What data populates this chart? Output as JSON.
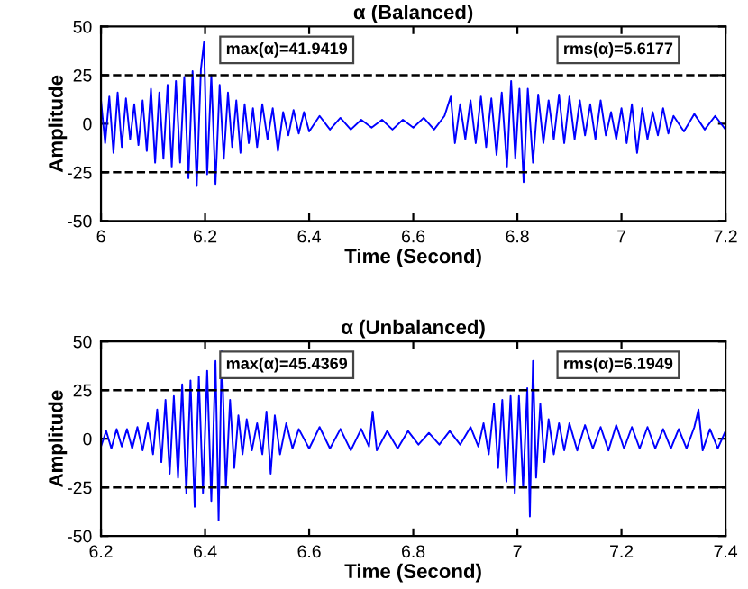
{
  "chart_data": [
    {
      "type": "line",
      "title": "α (Balanced)",
      "xlabel": "Time (Second)",
      "ylabel": "Amplitude",
      "xlim": [
        6,
        7.2
      ],
      "xticks": [
        6,
        6.2,
        6.4,
        6.6,
        6.8,
        7,
        7.2
      ],
      "ylim": [
        -50,
        50
      ],
      "yticks": [
        -50,
        -25,
        0,
        25,
        50
      ],
      "ref_lines": [
        {
          "axis": "y",
          "value": 25,
          "color": "#000000",
          "line_style": "dashed"
        },
        {
          "axis": "y",
          "value": -25,
          "color": "#000000",
          "line_style": "dashed"
        }
      ],
      "annotations": [
        "max(α)=41.9419",
        "rms(α)=5.6177"
      ],
      "grid": false,
      "legend": false,
      "series": [
        {
          "color": "#0000ff",
          "x": [
            6.0,
            6.008,
            6.016,
            6.024,
            6.032,
            6.04,
            6.048,
            6.056,
            6.064,
            6.072,
            6.08,
            6.088,
            6.096,
            6.104,
            6.112,
            6.12,
            6.128,
            6.136,
            6.144,
            6.152,
            6.16,
            6.168,
            6.176,
            6.184,
            6.192,
            6.198,
            6.204,
            6.212,
            6.22,
            6.228,
            6.236,
            6.244,
            6.252,
            6.26,
            6.268,
            6.276,
            6.284,
            6.292,
            6.3,
            6.31,
            6.32,
            6.33,
            6.34,
            6.35,
            6.36,
            6.37,
            6.38,
            6.39,
            6.4,
            6.42,
            6.44,
            6.46,
            6.48,
            6.5,
            6.52,
            6.54,
            6.56,
            6.58,
            6.6,
            6.62,
            6.64,
            6.66,
            6.672,
            6.68,
            6.69,
            6.7,
            6.71,
            6.72,
            6.73,
            6.74,
            6.75,
            6.76,
            6.77,
            6.78,
            6.788,
            6.796,
            6.804,
            6.812,
            6.82,
            6.83,
            6.84,
            6.85,
            6.86,
            6.87,
            6.88,
            6.89,
            6.9,
            6.91,
            6.92,
            6.93,
            6.94,
            6.95,
            6.96,
            6.97,
            6.98,
            6.99,
            7.0,
            7.01,
            7.02,
            7.03,
            7.04,
            7.05,
            7.06,
            7.07,
            7.08,
            7.09,
            7.1,
            7.12,
            7.14,
            7.16,
            7.18,
            7.2
          ],
          "values": [
            12,
            -10,
            14,
            -15,
            16,
            -12,
            13,
            -8,
            10,
            -11,
            12,
            -14,
            18,
            -20,
            16,
            -18,
            20,
            -22,
            22,
            -20,
            24,
            -28,
            27,
            -32,
            28,
            42,
            -26,
            25,
            -31,
            20,
            -18,
            16,
            -12,
            12,
            -15,
            10,
            -10,
            8,
            -12,
            10,
            -8,
            8,
            -14,
            6,
            -6,
            7,
            -5,
            6,
            -4,
            4,
            -3,
            3,
            -3,
            2,
            -2,
            2,
            -3,
            2,
            -2,
            3,
            -3,
            4,
            14,
            -10,
            10,
            -8,
            12,
            -10,
            14,
            -12,
            13,
            -16,
            16,
            -22,
            22,
            -18,
            18,
            -30,
            18,
            -20,
            15,
            -10,
            12,
            -8,
            15,
            -10,
            14,
            -8,
            12,
            -6,
            10,
            -8,
            12,
            -6,
            6,
            -8,
            8,
            -10,
            10,
            -15,
            8,
            -8,
            6,
            -6,
            8,
            -5,
            4,
            -4,
            5,
            -3,
            4,
            -3
          ]
        }
      ]
    },
    {
      "type": "line",
      "title": "α (Unbalanced)",
      "xlabel": "Time (Second)",
      "ylabel": "Amplitude",
      "xlim": [
        6.2,
        7.4
      ],
      "xticks": [
        6.2,
        6.4,
        6.6,
        6.8,
        7,
        7.2,
        7.4
      ],
      "ylim": [
        -50,
        50
      ],
      "yticks": [
        -50,
        -25,
        0,
        25,
        50
      ],
      "ref_lines": [
        {
          "axis": "y",
          "value": 25,
          "color": "#000000",
          "line_style": "dashed"
        },
        {
          "axis": "y",
          "value": -25,
          "color": "#000000",
          "line_style": "dashed"
        }
      ],
      "annotations": [
        "max(α)=45.4369",
        "rms(α)=6.1949"
      ],
      "grid": false,
      "legend": false,
      "series": [
        {
          "color": "#0000ff",
          "x": [
            6.2,
            6.21,
            6.22,
            6.23,
            6.24,
            6.25,
            6.26,
            6.27,
            6.28,
            6.29,
            6.3,
            6.308,
            6.316,
            6.324,
            6.332,
            6.34,
            6.348,
            6.356,
            6.364,
            6.372,
            6.38,
            6.388,
            6.396,
            6.404,
            6.412,
            6.42,
            6.426,
            6.432,
            6.44,
            6.448,
            6.456,
            6.464,
            6.472,
            6.48,
            6.49,
            6.5,
            6.51,
            6.518,
            6.526,
            6.534,
            6.544,
            6.556,
            6.568,
            6.58,
            6.6,
            6.62,
            6.64,
            6.66,
            6.68,
            6.7,
            6.715,
            6.722,
            6.73,
            6.75,
            6.77,
            6.79,
            6.81,
            6.83,
            6.85,
            6.87,
            6.89,
            6.91,
            6.925,
            6.935,
            6.945,
            6.955,
            6.963,
            6.971,
            6.979,
            6.987,
            6.995,
            7.003,
            7.011,
            7.019,
            7.024,
            7.03,
            7.036,
            7.044,
            7.052,
            7.06,
            7.07,
            7.08,
            7.09,
            7.1,
            7.115,
            7.13,
            7.145,
            7.16,
            7.175,
            7.19,
            7.205,
            7.22,
            7.235,
            7.25,
            7.265,
            7.28,
            7.295,
            7.31,
            7.325,
            7.34,
            7.348,
            7.356,
            7.37,
            7.385,
            7.4
          ],
          "values": [
            -4,
            4,
            -5,
            5,
            -4,
            5,
            -5,
            6,
            -6,
            8,
            -8,
            15,
            -12,
            20,
            -18,
            22,
            -20,
            28,
            -28,
            30,
            -35,
            32,
            -28,
            35,
            -32,
            40,
            -42,
            45,
            -25,
            20,
            -15,
            12,
            -8,
            10,
            -6,
            8,
            -8,
            14,
            -18,
            12,
            -8,
            8,
            -5,
            5,
            -5,
            6,
            -5,
            5,
            -6,
            5,
            -4,
            14,
            -6,
            4,
            -5,
            4,
            -3,
            3,
            -3,
            4,
            -3,
            6,
            -4,
            8,
            -8,
            18,
            -15,
            20,
            -22,
            22,
            -28,
            22,
            -25,
            26,
            -40,
            40,
            -20,
            18,
            -12,
            10,
            -8,
            8,
            -6,
            8,
            -6,
            7,
            -5,
            6,
            -6,
            7,
            -5,
            6,
            -5,
            6,
            -5,
            5,
            -5,
            5,
            -5,
            6,
            15,
            -6,
            5,
            -5,
            4
          ]
        }
      ]
    }
  ]
}
